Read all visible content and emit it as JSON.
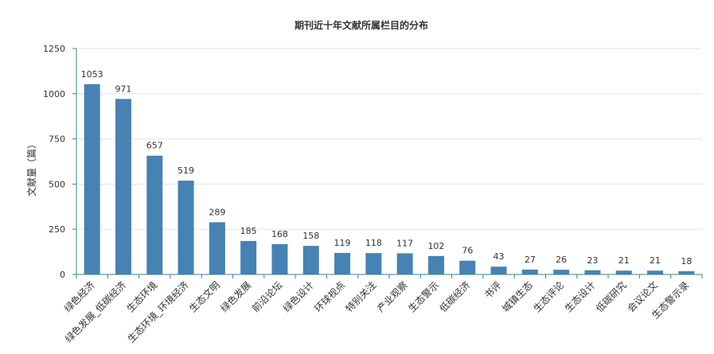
{
  "chart_data": {
    "type": "bar",
    "title": "期刊近十年文献所属栏目的分布",
    "ylabel": "文献量（篇）",
    "xlabel": "",
    "ylim": [
      0,
      1250
    ],
    "yticks": [
      0,
      250,
      500,
      750,
      1000,
      1250
    ],
    "grid": true,
    "legend": "none",
    "categories": [
      "绿色经济",
      "绿色发展_低碳经济",
      "生态环境",
      "生态环境_环境经济",
      "生态文明",
      "绿色发展",
      "前沿论坛",
      "绿色设计",
      "环球视点",
      "特别关注",
      "产业观察",
      "生态警示",
      "低碳经济",
      "书评",
      "城镇生态",
      "生态评论",
      "生态设计",
      "低碳研究",
      "会议论文",
      "生态警示录"
    ],
    "values": [
      1053,
      971,
      657,
      519,
      289,
      185,
      168,
      158,
      119,
      118,
      117,
      102,
      76,
      43,
      27,
      26,
      23,
      21,
      21,
      18
    ],
    "colors": {
      "bar": "#4682b4",
      "axis": "#2a8a8a",
      "grid": "#e3e3e3",
      "text": "#333333"
    }
  }
}
